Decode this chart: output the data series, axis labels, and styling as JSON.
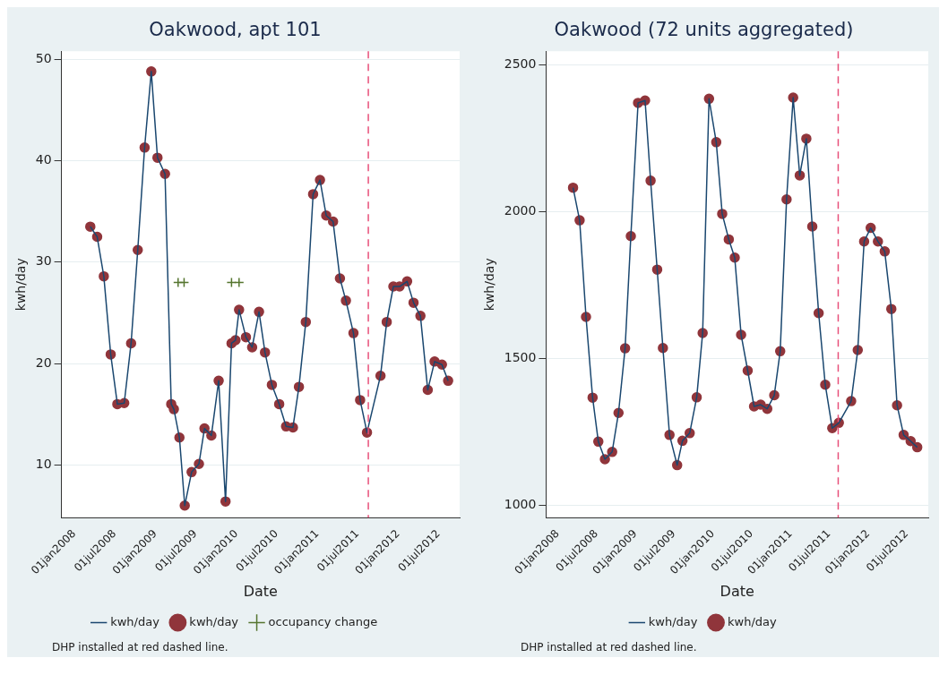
{
  "chart_data": [
    {
      "type": "line",
      "title": "Oakwood, apt 101",
      "xlabel": "Date",
      "ylabel": "kwh/day",
      "annotations": [
        "DHP installed at red dashed line."
      ],
      "x": [
        "2008-03-13",
        "2008-04-13",
        "2008-05-13",
        "2008-06-13",
        "2008-07-13",
        "2008-08-13",
        "2008-09-13",
        "2008-10-13",
        "2008-11-13",
        "2008-12-13",
        "2009-01-10",
        "2009-02-13",
        "2009-03-13",
        "2009-03-25",
        "2009-04-19",
        "2009-05-13",
        "2009-06-13",
        "2009-07-16",
        "2009-08-10",
        "2009-09-10",
        "2009-10-13",
        "2009-11-13",
        "2009-12-10",
        "2009-12-28",
        "2010-01-13",
        "2010-02-13",
        "2010-03-13",
        "2010-04-13",
        "2010-05-10",
        "2010-06-10",
        "2010-07-13",
        "2010-08-13",
        "2010-09-13",
        "2010-10-10",
        "2010-11-10",
        "2010-12-13",
        "2011-01-13",
        "2011-02-10",
        "2011-03-13",
        "2011-04-13",
        "2011-05-10",
        "2011-06-13",
        "2011-07-13",
        "2011-08-13",
        "2011-10-13",
        "2011-11-10",
        "2011-12-10",
        "2012-01-07",
        "2012-02-10",
        "2012-03-10",
        "2012-04-10",
        "2012-05-13",
        "2012-06-13",
        "2012-07-16",
        "2012-08-13"
      ],
      "series": [
        {
          "type": "line",
          "name": "kwh/day",
          "color": "#1a476f",
          "marker": "none",
          "values": [
            33.5,
            32.5,
            28.6,
            20.9,
            16.0,
            16.1,
            22.0,
            31.2,
            41.3,
            48.8,
            40.3,
            38.7,
            16.0,
            15.5,
            12.7,
            6.0,
            9.3,
            10.1,
            13.6,
            12.9,
            18.3,
            6.4,
            22.0,
            22.3,
            25.3,
            22.6,
            21.6,
            25.1,
            21.1,
            17.9,
            16.0,
            13.8,
            13.7,
            17.7,
            24.1,
            36.7,
            38.1,
            34.6,
            34.0,
            28.4,
            26.2,
            23.0,
            16.4,
            13.2,
            18.8,
            24.1,
            27.6,
            27.6,
            28.1,
            26.0,
            24.7,
            17.4,
            20.2,
            19.9,
            18.3
          ]
        },
        {
          "type": "scatter",
          "name": "kwh/day",
          "color": "#90353b",
          "marker": "circle",
          "values": [
            33.5,
            32.5,
            28.6,
            20.9,
            16.0,
            16.1,
            22.0,
            31.2,
            41.3,
            48.8,
            40.3,
            38.7,
            16.0,
            15.5,
            12.7,
            6.0,
            9.3,
            10.1,
            13.6,
            12.9,
            18.3,
            6.4,
            22.0,
            22.3,
            25.3,
            22.6,
            21.6,
            25.1,
            21.1,
            17.9,
            16.0,
            13.8,
            13.7,
            17.7,
            24.1,
            36.7,
            38.1,
            34.6,
            34.0,
            28.4,
            26.2,
            23.0,
            16.4,
            13.2,
            18.8,
            24.1,
            27.6,
            27.6,
            28.1,
            26.0,
            24.7,
            17.4,
            20.2,
            19.9,
            18.3
          ]
        },
        {
          "type": "scatter",
          "name": "occupancy change",
          "color": "#55752f",
          "marker": "cross",
          "x": [
            "2009-04-13",
            "2009-05-10",
            "2009-12-10",
            "2010-01-13"
          ],
          "values": [
            28,
            28,
            28,
            28
          ]
        }
      ],
      "xlim": [
        "2007-11-04",
        "2012-10-04"
      ],
      "ylim": [
        4.8,
        50.8
      ],
      "xticks": [
        {
          "value": "2008-01-01",
          "label": "01jan2008"
        },
        {
          "value": "2008-07-01",
          "label": "01jul2008"
        },
        {
          "value": "2009-01-01",
          "label": "01jan2009"
        },
        {
          "value": "2009-07-01",
          "label": "01jul2009"
        },
        {
          "value": "2010-01-01",
          "label": "01jan2010"
        },
        {
          "value": "2010-07-01",
          "label": "01jul2010"
        },
        {
          "value": "2011-01-01",
          "label": "01jan2011"
        },
        {
          "value": "2011-07-01",
          "label": "01jul2011"
        },
        {
          "value": "2012-01-01",
          "label": "01jan2012"
        },
        {
          "value": "2012-07-01",
          "label": "01jul2012"
        }
      ],
      "yticks": [
        10,
        20,
        30,
        40,
        50
      ],
      "grid": "y",
      "legend": "bottom",
      "ref_lines": [
        {
          "axis": "x",
          "value": "2011-08-19",
          "color": "#e8507a",
          "line_style": "dashed"
        }
      ]
    },
    {
      "type": "line",
      "title": "Oakwood (72 units aggregated)",
      "xlabel": "Date",
      "ylabel": "kwh/day",
      "annotations": [
        "DHP installed at red dashed line."
      ],
      "x": [
        "2008-03-13",
        "2008-04-13",
        "2008-05-13",
        "2008-06-13",
        "2008-07-10",
        "2008-08-10",
        "2008-09-13",
        "2008-10-13",
        "2008-11-13",
        "2008-12-10",
        "2009-01-13",
        "2009-02-15",
        "2009-03-13",
        "2009-04-13",
        "2009-05-10",
        "2009-06-10",
        "2009-07-16",
        "2009-08-10",
        "2009-09-13",
        "2009-10-16",
        "2009-11-13",
        "2009-12-13",
        "2010-01-16",
        "2010-02-13",
        "2010-03-16",
        "2010-04-13",
        "2010-05-13",
        "2010-06-13",
        "2010-07-13",
        "2010-08-13",
        "2010-09-13",
        "2010-10-16",
        "2010-11-13",
        "2010-12-13",
        "2011-01-13",
        "2011-02-13",
        "2011-03-16",
        "2011-04-13",
        "2011-05-13",
        "2011-06-13",
        "2011-07-16",
        "2011-08-16",
        "2011-10-13",
        "2011-11-13",
        "2011-12-13",
        "2012-01-13",
        "2012-02-16",
        "2012-03-19",
        "2012-04-19",
        "2012-05-16",
        "2012-06-16",
        "2012-07-19",
        "2012-08-19"
      ],
      "series": [
        {
          "type": "line",
          "name": "kwh/day",
          "color": "#1a476f",
          "marker": "none",
          "values": [
            2081,
            1970,
            1641,
            1366,
            1216,
            1156,
            1181,
            1314,
            1534,
            1916,
            2370,
            2378,
            2105,
            1802,
            1535,
            1239,
            1136,
            1219,
            1245,
            1367,
            1586,
            2384,
            2236,
            1992,
            1905,
            1843,
            1580,
            1458,
            1336,
            1342,
            1328,
            1374,
            1524,
            2041,
            2388,
            2123,
            2248,
            1949,
            1654,
            1410,
            1262,
            1280,
            1354,
            1528,
            1898,
            1944,
            1898,
            1864,
            1668,
            1340,
            1239,
            1218,
            1197
          ]
        },
        {
          "type": "scatter",
          "name": "kwh/day",
          "color": "#90353b",
          "marker": "circle",
          "values": [
            2081,
            1970,
            1641,
            1366,
            1216,
            1156,
            1181,
            1314,
            1534,
            1916,
            2370,
            2378,
            2105,
            1802,
            1535,
            1239,
            1136,
            1219,
            1245,
            1367,
            1586,
            2384,
            2236,
            1992,
            1905,
            1843,
            1580,
            1458,
            1336,
            1342,
            1328,
            1374,
            1524,
            2041,
            2388,
            2123,
            2248,
            1949,
            1654,
            1410,
            1262,
            1280,
            1354,
            1528,
            1898,
            1944,
            1898,
            1864,
            1668,
            1340,
            1239,
            1218,
            1197
          ]
        }
      ],
      "xlim": [
        "2007-11-07",
        "2012-10-10"
      ],
      "ylim": [
        957,
        2546
      ],
      "xticks": [
        {
          "value": "2008-01-01",
          "label": "01jan2008"
        },
        {
          "value": "2008-07-01",
          "label": "01jul2008"
        },
        {
          "value": "2009-01-01",
          "label": "01jan2009"
        },
        {
          "value": "2009-07-01",
          "label": "01jul2009"
        },
        {
          "value": "2010-01-01",
          "label": "01jan2010"
        },
        {
          "value": "2010-07-01",
          "label": "01jul2010"
        },
        {
          "value": "2011-01-01",
          "label": "01jan2011"
        },
        {
          "value": "2011-07-01",
          "label": "01jul2011"
        },
        {
          "value": "2012-01-01",
          "label": "01jan2012"
        },
        {
          "value": "2012-07-01",
          "label": "01jul2012"
        }
      ],
      "yticks": [
        1000,
        1500,
        2000,
        2500
      ],
      "grid": "y",
      "legend": "bottom",
      "ref_lines": [
        {
          "axis": "x",
          "value": "2011-08-13",
          "color": "#e8507a",
          "line_style": "dashed"
        }
      ]
    }
  ]
}
